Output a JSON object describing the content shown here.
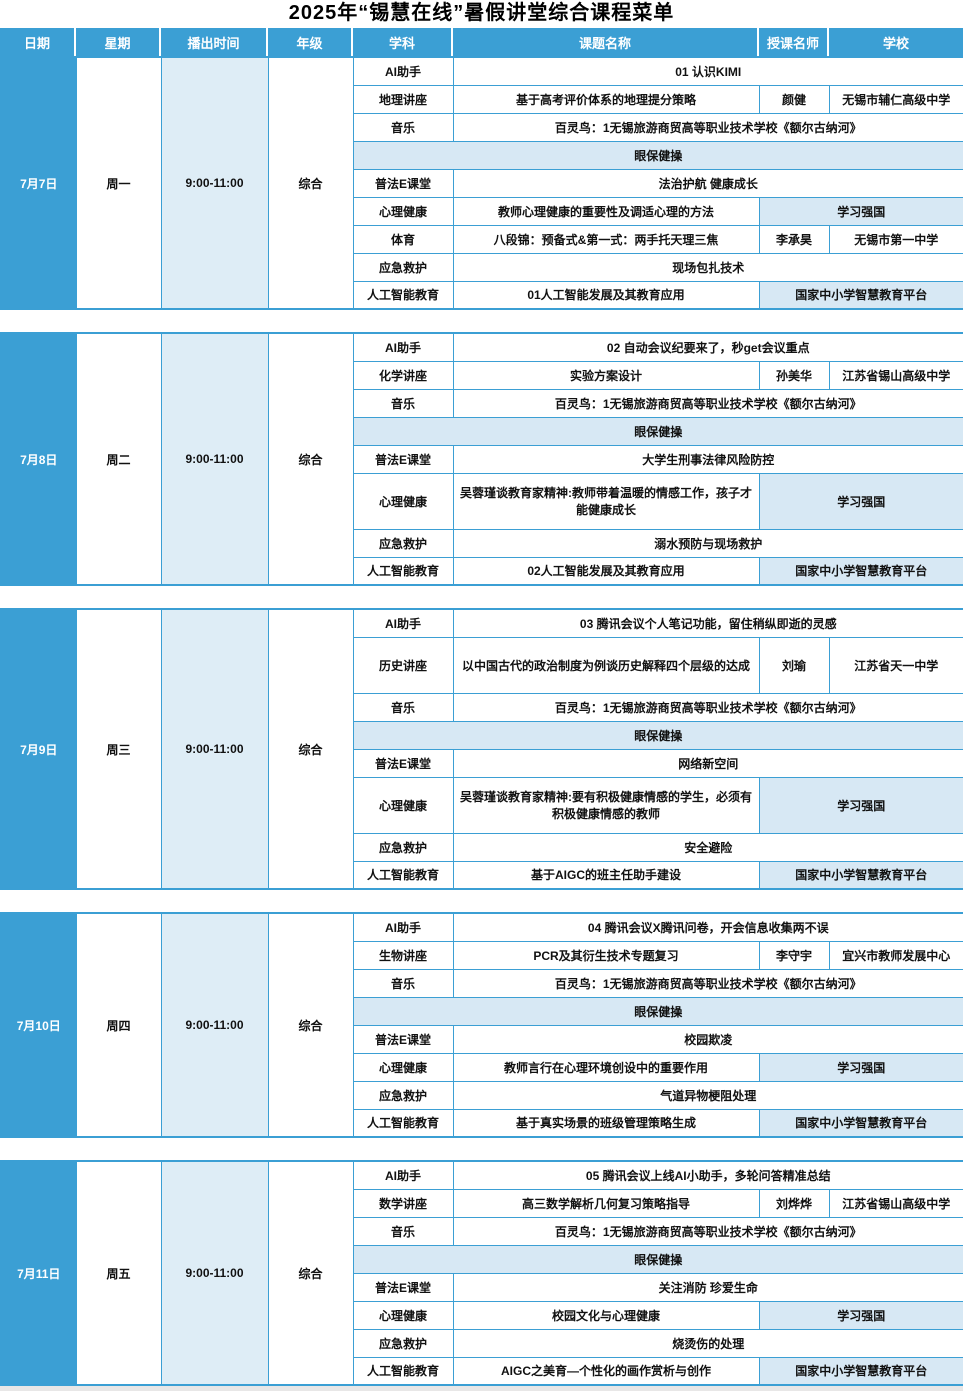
{
  "title": "2025年“锡慧在线”暑假讲堂综合课程菜单",
  "columns": [
    "日期",
    "星期",
    "播出时间",
    "年级",
    "学科",
    "课题名称",
    "授课名师",
    "学校"
  ],
  "blocks": [
    {
      "date": "7月7日",
      "weekday": "周一",
      "time": "9:00-11:00",
      "grade": "综合",
      "rows": [
        {
          "subject": "AI助手",
          "topic": "01 认识KIMI"
        },
        {
          "subject": "地理讲座",
          "topic": "基于高考评价体系的地理提分策略",
          "teacher": "颜健",
          "school": "无锡市辅仁高级中学"
        },
        {
          "subject": "音乐",
          "topic": "百灵鸟：1无锡旅游商贸高等职业技术学校《额尔古纳河》"
        },
        {
          "band": "眼保健操"
        },
        {
          "subject": "普法E课堂",
          "topic": "法治护航 健康成长"
        },
        {
          "subject": "心理健康",
          "topic": "教师心理健康的重要性及调适心理的方法",
          "platform": "学习强国"
        },
        {
          "subject": "体育",
          "topic": "八段锦：预备式&第一式：两手托天理三焦",
          "teacher": "李承昊",
          "school": "无锡市第一中学"
        },
        {
          "subject": "应急救护",
          "topic": "现场包扎技术"
        },
        {
          "subject": "人工智能教育",
          "topic": "01人工智能发展及其教育应用",
          "platform": "国家中小学智慧教育平台"
        }
      ]
    },
    {
      "date": "7月8日",
      "weekday": "周二",
      "time": "9:00-11:00",
      "grade": "综合",
      "rows": [
        {
          "subject": "AI助手",
          "topic": "02 自动会议纪要来了，秒get会议重点"
        },
        {
          "subject": "化学讲座",
          "topic": "实验方案设计",
          "teacher": "孙美华",
          "school": "江苏省锡山高级中学"
        },
        {
          "subject": "音乐",
          "topic": "百灵鸟：1无锡旅游商贸高等职业技术学校《额尔古纳河》"
        },
        {
          "band": "眼保健操"
        },
        {
          "subject": "普法E课堂",
          "topic": "大学生刑事法律风险防控"
        },
        {
          "subject": "心理健康",
          "topic": "吴蓉瑾谈教育家精神:教师带着温暖的情感工作，孩子才能健康成长",
          "platform": "学习强国"
        },
        {
          "subject": "应急救护",
          "topic": "溺水预防与现场救护"
        },
        {
          "subject": "人工智能教育",
          "topic": "02人工智能发展及其教育应用",
          "platform": "国家中小学智慧教育平台"
        }
      ]
    },
    {
      "date": "7月9日",
      "weekday": "周三",
      "time": "9:00-11:00",
      "grade": "综合",
      "rows": [
        {
          "subject": "AI助手",
          "topic": "03 腾讯会议个人笔记功能，留住稍纵即逝的灵感"
        },
        {
          "subject": "历史讲座",
          "topic": "以中国古代的政治制度为例谈历史解释四个层级的达成",
          "teacher": "刘瑜",
          "school": "江苏省天一中学"
        },
        {
          "subject": "音乐",
          "topic": "百灵鸟：1无锡旅游商贸高等职业技术学校《额尔古纳河》"
        },
        {
          "band": "眼保健操"
        },
        {
          "subject": "普法E课堂",
          "topic": "网络新空间"
        },
        {
          "subject": "心理健康",
          "topic": "吴蓉瑾谈教育家精神:要有积极健康情感的学生，必须有积极健康情感的教师",
          "platform": "学习强国"
        },
        {
          "subject": "应急救护",
          "topic": "安全避险"
        },
        {
          "subject": "人工智能教育",
          "topic": "基于AIGC的班主任助手建设",
          "platform": "国家中小学智慧教育平台"
        }
      ]
    },
    {
      "date": "7月10日",
      "weekday": "周四",
      "time": "9:00-11:00",
      "grade": "综合",
      "rows": [
        {
          "subject": "AI助手",
          "topic": "04 腾讯会议X腾讯问卷，开会信息收集两不误"
        },
        {
          "subject": "生物讲座",
          "topic": "PCR及其衍生技术专题复习",
          "teacher": "李守宇",
          "school": "宜兴市教师发展中心"
        },
        {
          "subject": "音乐",
          "topic": "百灵鸟：1无锡旅游商贸高等职业技术学校《额尔古纳河》"
        },
        {
          "band": "眼保健操"
        },
        {
          "subject": "普法E课堂",
          "topic": "校园欺凌"
        },
        {
          "subject": "心理健康",
          "topic": "教师言行在心理环境创设中的重要作用",
          "platform": "学习强国"
        },
        {
          "subject": "应急救护",
          "topic": "气道异物梗阻处理"
        },
        {
          "subject": "人工智能教育",
          "topic": "基于真实场景的班级管理策略生成",
          "platform": "国家中小学智慧教育平台"
        }
      ]
    },
    {
      "date": "7月11日",
      "weekday": "周五",
      "time": "9:00-11:00",
      "grade": "综合",
      "rows": [
        {
          "subject": "AI助手",
          "topic": "05 腾讯会议上线AI小助手，多轮问答精准总结"
        },
        {
          "subject": "数学讲座",
          "topic": "高三数学解析几何复习策略指导",
          "teacher": "刘烨烨",
          "school": "江苏省锡山高级中学"
        },
        {
          "subject": "音乐",
          "topic": "百灵鸟：1无锡旅游商贸高等职业技术学校《额尔古纳河》"
        },
        {
          "band": "眼保健操"
        },
        {
          "subject": "普法E课堂",
          "topic": "关注消防 珍爱生命"
        },
        {
          "subject": "心理健康",
          "topic": "校园文化与心理健康",
          "platform": "学习强国"
        },
        {
          "subject": "应急救护",
          "topic": "烧烫伤的处理"
        },
        {
          "subject": "人工智能教育",
          "topic": "AIGC之美育—个性化的画作赏析与创作",
          "platform": "国家中小学智慧教育平台"
        }
      ]
    }
  ],
  "colors": {
    "accent_blue": "#3B9FD4",
    "light_blue_fill": "#D7E8F4",
    "time_col_fill": "#DEEDF6"
  }
}
